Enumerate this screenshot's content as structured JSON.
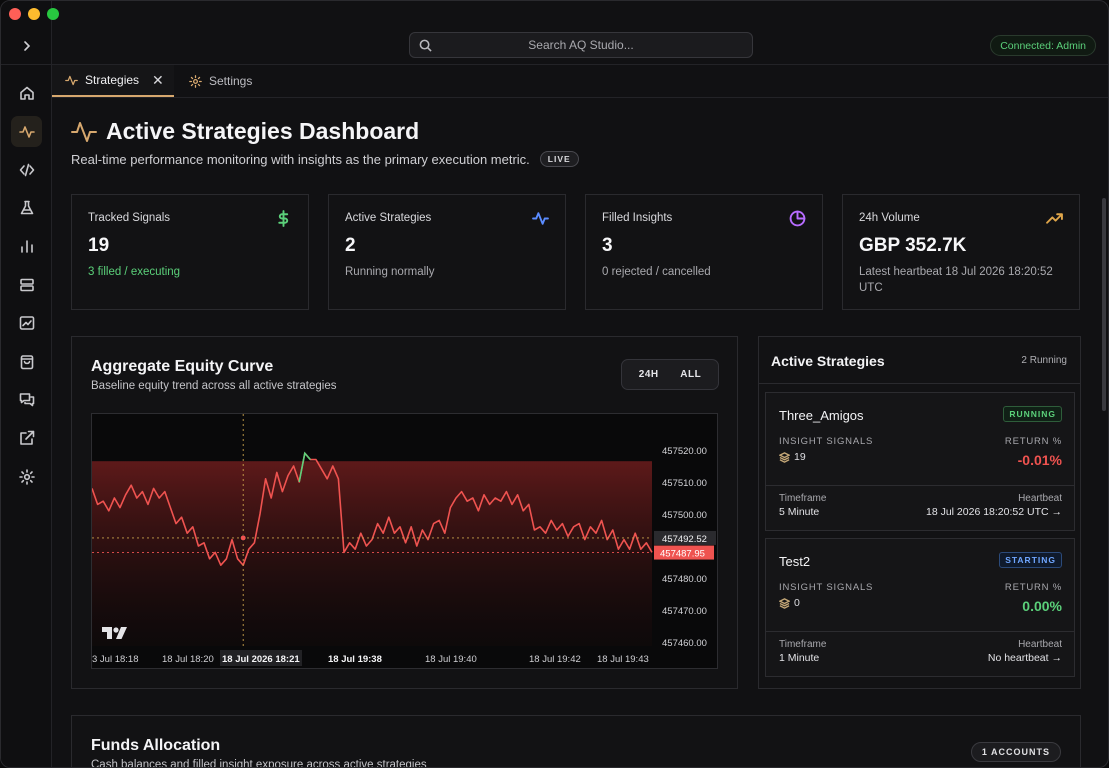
{
  "window": {
    "traffic_lights": [
      "close",
      "minimize",
      "maximize"
    ]
  },
  "search": {
    "placeholder": "Search AQ Studio..."
  },
  "connection": {
    "status": "Connected: Admin"
  },
  "tabs": [
    {
      "label": "Strategies",
      "icon": "activity-icon",
      "closable": true,
      "active": true
    },
    {
      "label": "Settings",
      "icon": "gear-icon",
      "active": false
    }
  ],
  "sidebar": {
    "items": [
      {
        "name": "home",
        "icon": "home-icon"
      },
      {
        "name": "strategies",
        "icon": "activity-icon",
        "active": true
      },
      {
        "name": "code",
        "icon": "code-icon"
      },
      {
        "name": "lab",
        "icon": "flask-icon"
      },
      {
        "name": "charts",
        "icon": "bar-chart-icon"
      },
      {
        "name": "servers",
        "icon": "server-icon"
      },
      {
        "name": "monitor",
        "icon": "line-chart-icon"
      },
      {
        "name": "orders",
        "icon": "bag-icon"
      },
      {
        "name": "messages",
        "icon": "chat-icon"
      },
      {
        "name": "export",
        "icon": "external-link-icon"
      },
      {
        "name": "settings",
        "icon": "gear-icon"
      }
    ]
  },
  "header": {
    "title": "Active Strategies Dashboard",
    "subtitle": "Real-time performance monitoring with insights as the primary execution metric.",
    "live_badge": "LIVE"
  },
  "stats": [
    {
      "label": "Tracked Signals",
      "value": "19",
      "note": "3 filled / executing",
      "icon": "dollar-icon",
      "color": "#5bd07a"
    },
    {
      "label": "Active Strategies",
      "value": "2",
      "note": "Running normally",
      "icon": "activity-icon",
      "color": "#5b8cff"
    },
    {
      "label": "Filled Insights",
      "value": "3",
      "note": "0 rejected / cancelled",
      "icon": "pie-chart-icon",
      "color": "#b76cff"
    },
    {
      "label": "24h Volume",
      "value": "GBP 352.7K",
      "note": "Latest heartbeat 18 Jul 2026 18:20:52 UTC",
      "icon": "trending-up-icon",
      "color": "#e0a64a"
    }
  ],
  "equity": {
    "title": "Aggregate Equity Curve",
    "description": "Baseline equity trend across all active strategies",
    "ranges": [
      "24H",
      "ALL"
    ],
    "crosshair_time": "18 Jul 2026 18:21",
    "crosshair_price": "457492.52",
    "last_price": "457487.95"
  },
  "chart_data": {
    "type": "line",
    "title": "",
    "xlabel": "",
    "ylabel": "",
    "x_tick_labels": [
      "3 Jul 18:18",
      "18 Jul 18:20",
      "18 Jul 2026 18:21",
      "18 Jul 19:38",
      "18 Jul 19:40",
      "18 Jul 19:42",
      "18 Jul 19:43"
    ],
    "y_tick_labels": [
      "457520.00",
      "457510.00",
      "457500.00",
      "457480.00",
      "457470.00",
      "457460.00"
    ],
    "ylim": [
      457460,
      457530
    ],
    "series": [
      {
        "color": "#ef5350",
        "values": [
          457508,
          457503,
          457504,
          457501,
          457505,
          457502,
          457506,
          457509,
          457505,
          457507,
          457503,
          457508,
          457505,
          457507,
          457502,
          457497,
          457499,
          457494,
          457496,
          457490,
          457491,
          457486,
          457488,
          457484,
          457486,
          457492,
          457486,
          457484,
          457489,
          457491,
          457500,
          457511,
          457505,
          457513,
          457507,
          457512,
          457515,
          457510,
          457519,
          457517,
          457517,
          457514,
          457511,
          457515,
          457511,
          457488,
          457491,
          457489,
          457494,
          457490,
          457492,
          457497,
          457494,
          457499,
          457494,
          457496,
          457491,
          457496,
          457490,
          457495,
          457492,
          457497,
          457498,
          457494,
          457502,
          457505,
          457507,
          457504,
          457505,
          457501,
          457506,
          457503,
          457505,
          457504,
          457507,
          457503,
          457506,
          457501,
          457503,
          457495,
          457496,
          457494,
          457498,
          457495,
          457497,
          457493,
          457496,
          457497,
          457492,
          457496,
          457494,
          457498,
          457492,
          457495,
          457489,
          457492,
          457489,
          457494,
          457489,
          457491,
          457488
        ]
      }
    ],
    "grid": false,
    "legend": "none"
  },
  "strategies_panel": {
    "title": "Active Strategies",
    "count": "2 Running",
    "items": [
      {
        "name": "Three_Amigos",
        "status": "RUNNING",
        "signals_label": "INSIGHT SIGNALS",
        "signals": "19",
        "return_label": "RETURN %",
        "return": "-0.01%",
        "timeframe_label": "Timeframe",
        "timeframe": "5 Minute",
        "heartbeat_label": "Heartbeat",
        "heartbeat": "18 Jul 2026 18:20:52 UTC →"
      },
      {
        "name": "Test2",
        "status": "STARTING",
        "signals_label": "INSIGHT SIGNALS",
        "signals": "0",
        "return_label": "RETURN %",
        "return": "0.00%",
        "timeframe_label": "Timeframe",
        "timeframe": "1 Minute",
        "heartbeat_label": "Heartbeat",
        "heartbeat": "No heartbeat →"
      }
    ]
  },
  "funds": {
    "title": "Funds Allocation",
    "description": "Cash balances and filled insight exposure across active strategies",
    "accounts_badge": "1 ACCOUNTS"
  }
}
